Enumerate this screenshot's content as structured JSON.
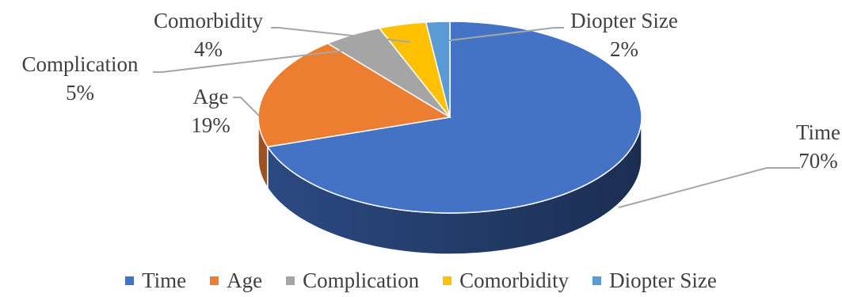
{
  "chart_data": {
    "type": "pie",
    "style": "3d",
    "title": "",
    "categories": [
      "Time",
      "Age",
      "Complication",
      "Comorbidity",
      "Diopter Size"
    ],
    "values": [
      70,
      19,
      5,
      4,
      2
    ],
    "value_labels": [
      "70%",
      "19%",
      "5%",
      "4%",
      "2%"
    ],
    "colors": [
      "#4472C4",
      "#ED7D31",
      "#A5A5A5",
      "#FFC000",
      "#5B9BD5"
    ],
    "side_colors": [
      "#2B4A82",
      "#9C5220",
      "#6E6E6E",
      "#A67C00",
      "#3C6A93"
    ],
    "legend_position": "bottom"
  }
}
